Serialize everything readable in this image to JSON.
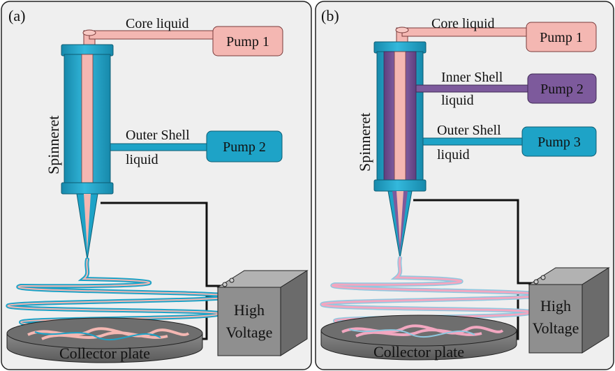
{
  "panel_a": {
    "tag": "(a)",
    "core_label": "Core  liquid",
    "pump1": "Pump 1",
    "outer_label_1": "Outer Shell",
    "outer_label_2": "liquid",
    "pump2": "Pump 2",
    "spinneret": "Spinneret",
    "hv_1": "High",
    "hv_2": "Voltage",
    "collector": "Collector  plate"
  },
  "panel_b": {
    "tag": "(b)",
    "core_label": "Core  liquid",
    "pump1": "Pump 1",
    "inner_label_1": "Inner Shell",
    "inner_label_2": "liquid",
    "pump2": "Pump 2",
    "outer_label_1": "Outer Shell",
    "outer_label_2": "liquid",
    "pump3": "Pump 3",
    "spinneret": "Spinneret",
    "hv_1": "High",
    "hv_2": "Voltage",
    "collector": "Collector  plate"
  },
  "colors": {
    "panel_bg": "#efefef",
    "core_pink": "#f4b7b2",
    "shell_cyan": "#1ea3c7",
    "inner_purple": "#7d5a9c",
    "box_grey": "#8f8f8f",
    "plate_dark": "#6e6e6e"
  }
}
